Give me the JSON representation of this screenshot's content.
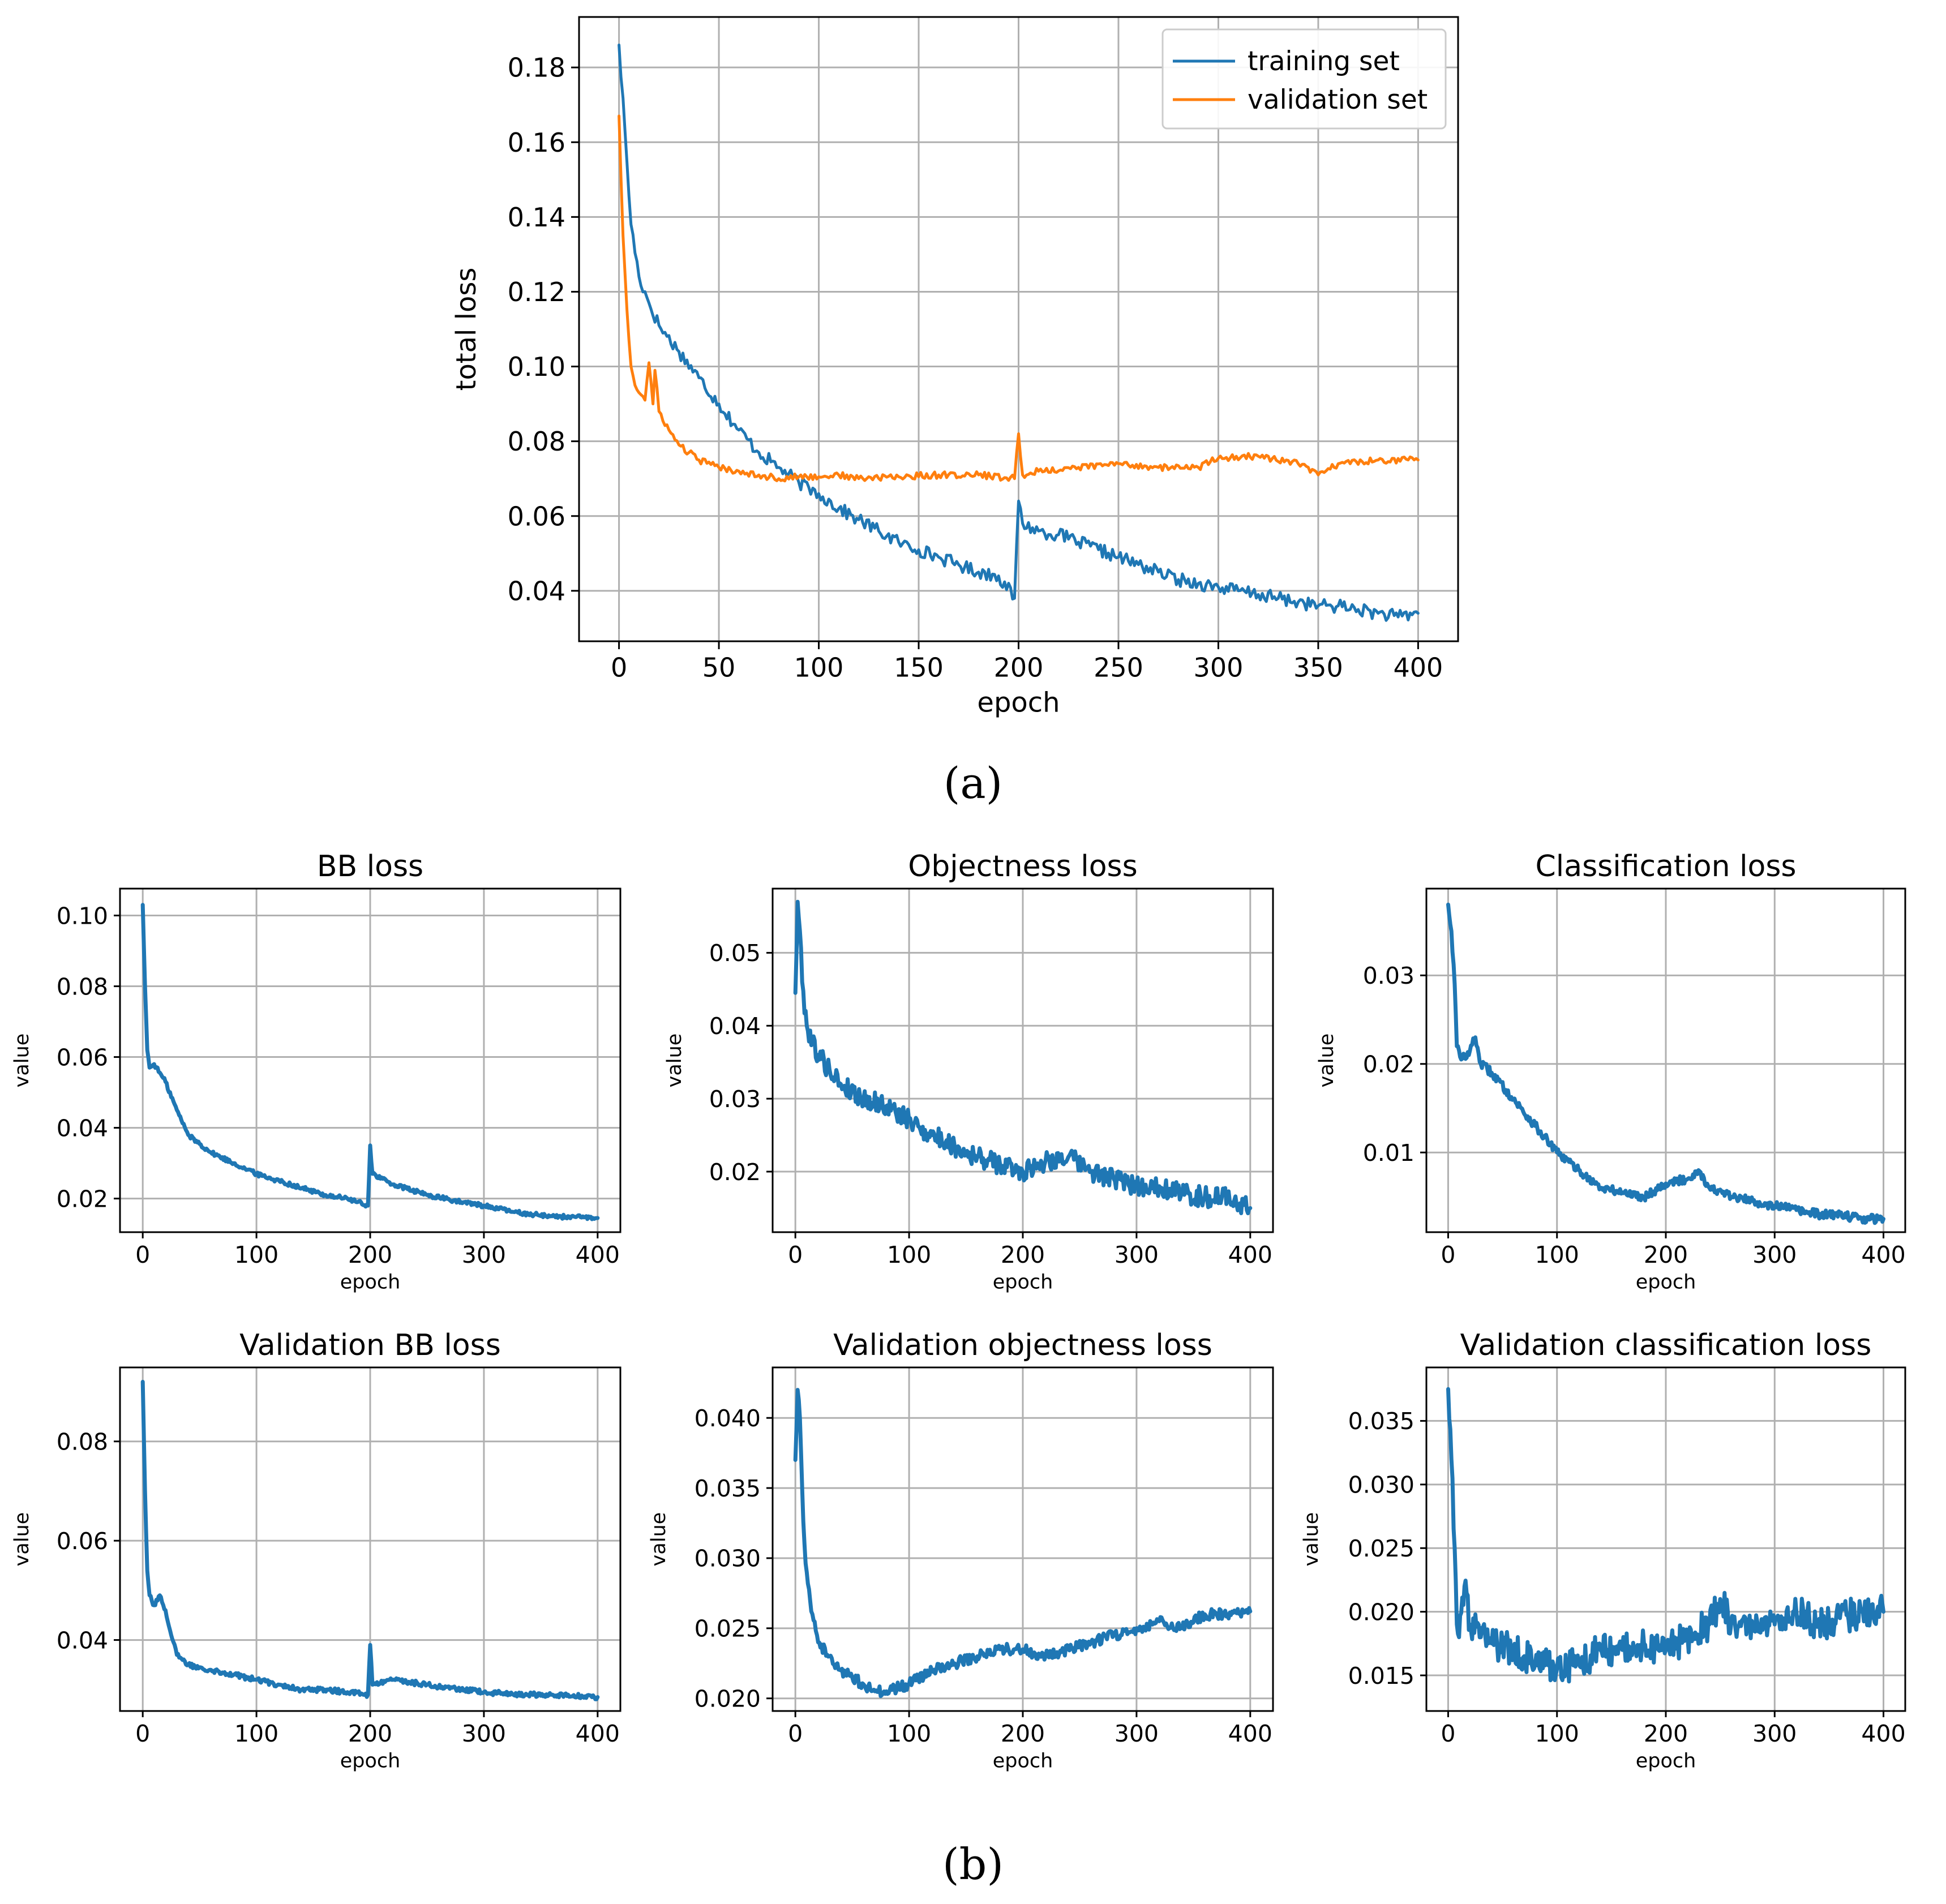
{
  "panel_labels": {
    "a": "(a)",
    "b": "(b)"
  },
  "colors": {
    "training": "#1f77b4",
    "validation": "#ff7f0e",
    "grid": "#b0b0b0",
    "axis": "#000000"
  },
  "chart_data": [
    {
      "id": "total",
      "type": "line",
      "title": "",
      "xlabel": "epoch",
      "ylabel": "total loss",
      "xlim": [
        -20,
        420
      ],
      "ylim": [
        0.0265,
        0.1935
      ],
      "xticks": [
        0,
        50,
        100,
        150,
        200,
        250,
        300,
        350,
        400
      ],
      "yticks": [
        0.04,
        0.06,
        0.08,
        0.1,
        0.12,
        0.14,
        0.16,
        0.18
      ],
      "ytick_labels": [
        "0.04",
        "0.06",
        "0.08",
        "0.10",
        "0.12",
        "0.14",
        "0.16",
        "0.18"
      ],
      "grid": true,
      "legend_position": "top-right",
      "series": [
        {
          "name": "training set",
          "color": "#1f77b4",
          "x": [
            0,
            3,
            6,
            10,
            15,
            20,
            30,
            40,
            50,
            60,
            70,
            80,
            90,
            100,
            110,
            120,
            130,
            140,
            150,
            160,
            170,
            180,
            190,
            198,
            200,
            202,
            210,
            220,
            230,
            240,
            250,
            260,
            270,
            280,
            290,
            300,
            310,
            320,
            330,
            340,
            350,
            360,
            370,
            380,
            390,
            400
          ],
          "values": [
            0.186,
            0.163,
            0.138,
            0.124,
            0.117,
            0.111,
            0.104,
            0.097,
            0.09,
            0.083,
            0.077,
            0.073,
            0.069,
            0.066,
            0.062,
            0.059,
            0.056,
            0.053,
            0.051,
            0.049,
            0.047,
            0.045,
            0.044,
            0.038,
            0.064,
            0.058,
            0.056,
            0.055,
            0.053,
            0.051,
            0.049,
            0.047,
            0.045,
            0.043,
            0.042,
            0.041,
            0.04,
            0.039,
            0.038,
            0.037,
            0.036,
            0.036,
            0.035,
            0.034,
            0.033,
            0.034
          ],
          "noise": 0.0018
        },
        {
          "name": "validation set",
          "color": "#ff7f0e",
          "x": [
            0,
            2,
            4,
            6,
            8,
            10,
            13,
            15,
            17,
            18,
            20,
            25,
            30,
            40,
            50,
            60,
            70,
            80,
            90,
            100,
            110,
            120,
            140,
            160,
            180,
            198,
            200,
            202,
            210,
            230,
            250,
            270,
            290,
            300,
            320,
            340,
            350,
            360,
            380,
            400
          ],
          "values": [
            0.167,
            0.135,
            0.115,
            0.1,
            0.095,
            0.093,
            0.091,
            0.101,
            0.09,
            0.099,
            0.088,
            0.083,
            0.079,
            0.075,
            0.073,
            0.072,
            0.071,
            0.07,
            0.0705,
            0.0705,
            0.071,
            0.07,
            0.0705,
            0.071,
            0.071,
            0.07,
            0.082,
            0.071,
            0.072,
            0.073,
            0.074,
            0.073,
            0.073,
            0.0755,
            0.076,
            0.074,
            0.071,
            0.074,
            0.075,
            0.075
          ],
          "noise": 0.0009
        }
      ]
    },
    {
      "id": "bb",
      "type": "line",
      "title": "BB loss",
      "xlabel": "epoch",
      "ylabel": "value",
      "xlim": [
        -20,
        420
      ],
      "ylim": [
        0.0105,
        0.1076
      ],
      "xticks": [
        0,
        100,
        200,
        300,
        400
      ],
      "yticks": [
        0.02,
        0.04,
        0.06,
        0.08,
        0.1
      ],
      "ytick_labels": [
        "0.02",
        "0.04",
        "0.06",
        "0.08",
        "0.10"
      ],
      "grid": true,
      "series": [
        {
          "name": "BB loss",
          "color": "#1f77b4",
          "x": [
            0,
            2,
            4,
            6,
            10,
            20,
            30,
            40,
            60,
            80,
            100,
            120,
            140,
            160,
            180,
            198,
            200,
            202,
            220,
            250,
            280,
            300,
            330,
            360,
            400
          ],
          "values": [
            0.103,
            0.08,
            0.062,
            0.057,
            0.058,
            0.053,
            0.045,
            0.038,
            0.033,
            0.03,
            0.027,
            0.025,
            0.023,
            0.021,
            0.02,
            0.018,
            0.035,
            0.027,
            0.024,
            0.021,
            0.019,
            0.018,
            0.016,
            0.015,
            0.0145
          ],
          "noise": 0.0006
        }
      ]
    },
    {
      "id": "obj",
      "type": "line",
      "title": "Objectness loss",
      "xlabel": "epoch",
      "ylabel": "value",
      "xlim": [
        -20,
        420
      ],
      "ylim": [
        0.0117,
        0.0588
      ],
      "xticks": [
        0,
        100,
        200,
        300,
        400
      ],
      "yticks": [
        0.02,
        0.03,
        0.04,
        0.05
      ],
      "ytick_labels": [
        "0.02",
        "0.03",
        "0.04",
        "0.05"
      ],
      "grid": true,
      "series": [
        {
          "name": "Objectness loss",
          "color": "#1f77b4",
          "x": [
            0,
            2,
            4,
            6,
            10,
            20,
            30,
            40,
            60,
            80,
            100,
            120,
            140,
            160,
            180,
            200,
            220,
            240,
            260,
            280,
            300,
            320,
            340,
            360,
            380,
            400
          ],
          "values": [
            0.0445,
            0.057,
            0.053,
            0.046,
            0.04,
            0.036,
            0.034,
            0.032,
            0.03,
            0.029,
            0.027,
            0.025,
            0.0235,
            0.022,
            0.021,
            0.02,
            0.0215,
            0.022,
            0.02,
            0.019,
            0.018,
            0.018,
            0.017,
            0.0165,
            0.0165,
            0.015
          ],
          "noise": 0.0014
        }
      ]
    },
    {
      "id": "cls",
      "type": "line",
      "title": "Classification loss",
      "xlabel": "epoch",
      "ylabel": "value",
      "xlim": [
        -20,
        420
      ],
      "ylim": [
        0.001,
        0.0398
      ],
      "xticks": [
        0,
        100,
        200,
        300,
        400
      ],
      "yticks": [
        0.01,
        0.02,
        0.03
      ],
      "ytick_labels": [
        "0.01",
        "0.02",
        "0.03"
      ],
      "grid": true,
      "series": [
        {
          "name": "Classification loss",
          "color": "#1f77b4",
          "x": [
            0,
            3,
            6,
            8,
            12,
            20,
            25,
            30,
            40,
            60,
            80,
            100,
            120,
            140,
            160,
            180,
            200,
            220,
            230,
            240,
            260,
            280,
            300,
            320,
            340,
            360,
            380,
            400
          ],
          "values": [
            0.038,
            0.035,
            0.029,
            0.022,
            0.0205,
            0.0215,
            0.023,
            0.02,
            0.019,
            0.016,
            0.013,
            0.01,
            0.008,
            0.006,
            0.0055,
            0.005,
            0.0065,
            0.007,
            0.008,
            0.006,
            0.005,
            0.0045,
            0.004,
            0.0035,
            0.003,
            0.003,
            0.0025,
            0.0025
          ],
          "noise": 0.0005
        }
      ]
    },
    {
      "id": "vbb",
      "type": "line",
      "title": "Validation BB loss",
      "xlabel": "epoch",
      "ylabel": "value",
      "xlim": [
        -20,
        420
      ],
      "ylim": [
        0.0257,
        0.0949
      ],
      "xticks": [
        0,
        100,
        200,
        300,
        400
      ],
      "yticks": [
        0.04,
        0.06,
        0.08
      ],
      "ytick_labels": [
        "0.04",
        "0.06",
        "0.08"
      ],
      "grid": true,
      "series": [
        {
          "name": "Validation BB loss",
          "color": "#1f77b4",
          "x": [
            0,
            2,
            4,
            6,
            10,
            15,
            20,
            25,
            30,
            40,
            60,
            80,
            100,
            120,
            140,
            160,
            180,
            198,
            200,
            202,
            220,
            250,
            280,
            300,
            330,
            360,
            400
          ],
          "values": [
            0.092,
            0.07,
            0.054,
            0.049,
            0.047,
            0.049,
            0.046,
            0.041,
            0.037,
            0.035,
            0.034,
            0.033,
            0.032,
            0.031,
            0.03,
            0.03,
            0.0295,
            0.029,
            0.039,
            0.031,
            0.032,
            0.031,
            0.03,
            0.0295,
            0.029,
            0.029,
            0.0285
          ],
          "noise": 0.0005
        }
      ]
    },
    {
      "id": "vobj",
      "type": "line",
      "title": "Validation objectness loss",
      "xlabel": "epoch",
      "ylabel": "value",
      "xlim": [
        -20,
        420
      ],
      "ylim": [
        0.0191,
        0.0436
      ],
      "xticks": [
        0,
        100,
        200,
        300,
        400
      ],
      "yticks": [
        0.02,
        0.025,
        0.03,
        0.035,
        0.04
      ],
      "ytick_labels": [
        "0.020",
        "0.025",
        "0.030",
        "0.035",
        "0.040"
      ],
      "grid": true,
      "series": [
        {
          "name": "Validation objectness loss",
          "color": "#1f77b4",
          "x": [
            0,
            2,
            4,
            6,
            8,
            10,
            15,
            20,
            30,
            40,
            50,
            60,
            70,
            80,
            100,
            120,
            140,
            160,
            180,
            200,
            220,
            240,
            260,
            280,
            300,
            320,
            340,
            360,
            380,
            400
          ],
          "values": [
            0.037,
            0.042,
            0.04,
            0.035,
            0.031,
            0.029,
            0.026,
            0.024,
            0.023,
            0.022,
            0.0215,
            0.021,
            0.0205,
            0.0205,
            0.021,
            0.022,
            0.0225,
            0.023,
            0.0235,
            0.0235,
            0.023,
            0.0235,
            0.024,
            0.0245,
            0.025,
            0.0255,
            0.025,
            0.026,
            0.026,
            0.0262
          ],
          "noise": 0.0004
        }
      ]
    },
    {
      "id": "vcls",
      "type": "line",
      "title": "Validation classification loss",
      "xlabel": "epoch",
      "ylabel": "value",
      "xlim": [
        -20,
        420
      ],
      "ylim": [
        0.0122,
        0.0392
      ],
      "xticks": [
        0,
        100,
        200,
        300,
        400
      ],
      "yticks": [
        0.015,
        0.02,
        0.025,
        0.03,
        0.035
      ],
      "ytick_labels": [
        "0.015",
        "0.020",
        "0.025",
        "0.030",
        "0.035"
      ],
      "grid": true,
      "series": [
        {
          "name": "Validation classification loss",
          "color": "#1f77b4",
          "x": [
            0,
            3,
            6,
            8,
            10,
            15,
            20,
            30,
            40,
            60,
            80,
            100,
            120,
            140,
            160,
            180,
            200,
            220,
            240,
            250,
            260,
            280,
            300,
            320,
            340,
            360,
            380,
            400
          ],
          "values": [
            0.0375,
            0.032,
            0.025,
            0.019,
            0.018,
            0.022,
            0.019,
            0.018,
            0.0175,
            0.017,
            0.016,
            0.0155,
            0.016,
            0.017,
            0.017,
            0.0175,
            0.017,
            0.018,
            0.019,
            0.021,
            0.019,
            0.0185,
            0.019,
            0.02,
            0.019,
            0.0195,
            0.02,
            0.02
          ],
          "noise": 0.0013
        }
      ]
    }
  ]
}
